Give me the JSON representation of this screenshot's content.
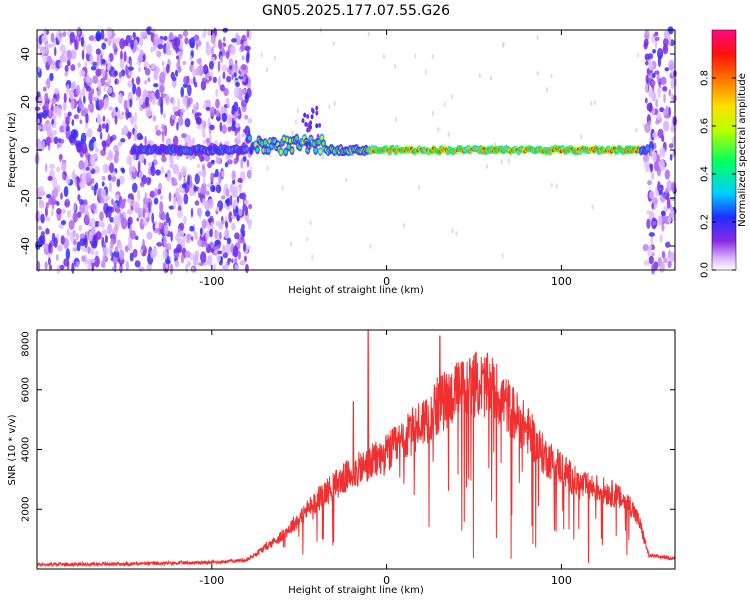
{
  "title": "GN05.2025.177.07.55.G26",
  "chart_data": [
    {
      "type": "heatmap",
      "xlabel": "Height of straight line (km)",
      "ylabel": "Frequency (Hz)",
      "xlim": [
        -200,
        165
      ],
      "ylim": [
        -50,
        50
      ],
      "xticks": [
        -100,
        0,
        100
      ],
      "xtick_labels": [
        "-100",
        "0",
        "100"
      ],
      "yticks": [
        -40,
        -20,
        0,
        20,
        40
      ],
      "ytick_labels": [
        "-40",
        "-20",
        "0",
        "20",
        "40"
      ],
      "colorbar": {
        "label": "Normalized spectral amplitude",
        "range": [
          0,
          1
        ],
        "ticks": [
          0,
          0.2,
          0.4,
          0.6,
          0.8
        ],
        "tick_labels": [
          "0.0",
          "0.2",
          "0.4",
          "0.6",
          "0.8"
        ],
        "colormap": "rainbow (white-violet-blue-cyan-green-yellow-red-magenta)"
      },
      "features": {
        "noise_region_left_km": [
          -200,
          -78
        ],
        "noise_region_right_km": [
          148,
          165
        ],
        "signal_band_center_hz": 0,
        "signal_band_halfwidth_hz": 2,
        "signal_band_extent_km": [
          -145,
          150
        ],
        "strong_core_km": [
          -10,
          145
        ]
      }
    },
    {
      "type": "line",
      "xlabel": "Height of straight line (km)",
      "ylabel": "SNR (10 * v/v)",
      "xlim": [
        -200,
        165
      ],
      "ylim": [
        0,
        8000
      ],
      "xticks": [
        -100,
        0,
        100
      ],
      "xtick_labels": [
        "-100",
        "0",
        "100"
      ],
      "yticks": [
        2000,
        4000,
        6000,
        8000
      ],
      "ytick_labels": [
        "2000",
        "4000",
        "6000",
        "8000"
      ],
      "color": "#f03030",
      "x": [
        -200,
        -150,
        -100,
        -80,
        -70,
        -60,
        -50,
        -40,
        -30,
        -20,
        -10,
        0,
        10,
        20,
        30,
        40,
        50,
        60,
        70,
        80,
        90,
        100,
        110,
        120,
        130,
        140,
        145,
        150,
        165
      ],
      "y": [
        150,
        170,
        220,
        300,
        700,
        1100,
        1700,
        2300,
        2800,
        3200,
        3500,
        3850,
        4300,
        4900,
        5500,
        5900,
        6200,
        6100,
        5400,
        4700,
        3800,
        3400,
        2800,
        2700,
        2500,
        2100,
        1500,
        450,
        350
      ],
      "peaks": [
        {
          "x": -10.5,
          "y": 8100
        },
        {
          "x": 30.5,
          "y": 7800
        },
        {
          "x": -19,
          "y": 5600
        }
      ]
    }
  ]
}
